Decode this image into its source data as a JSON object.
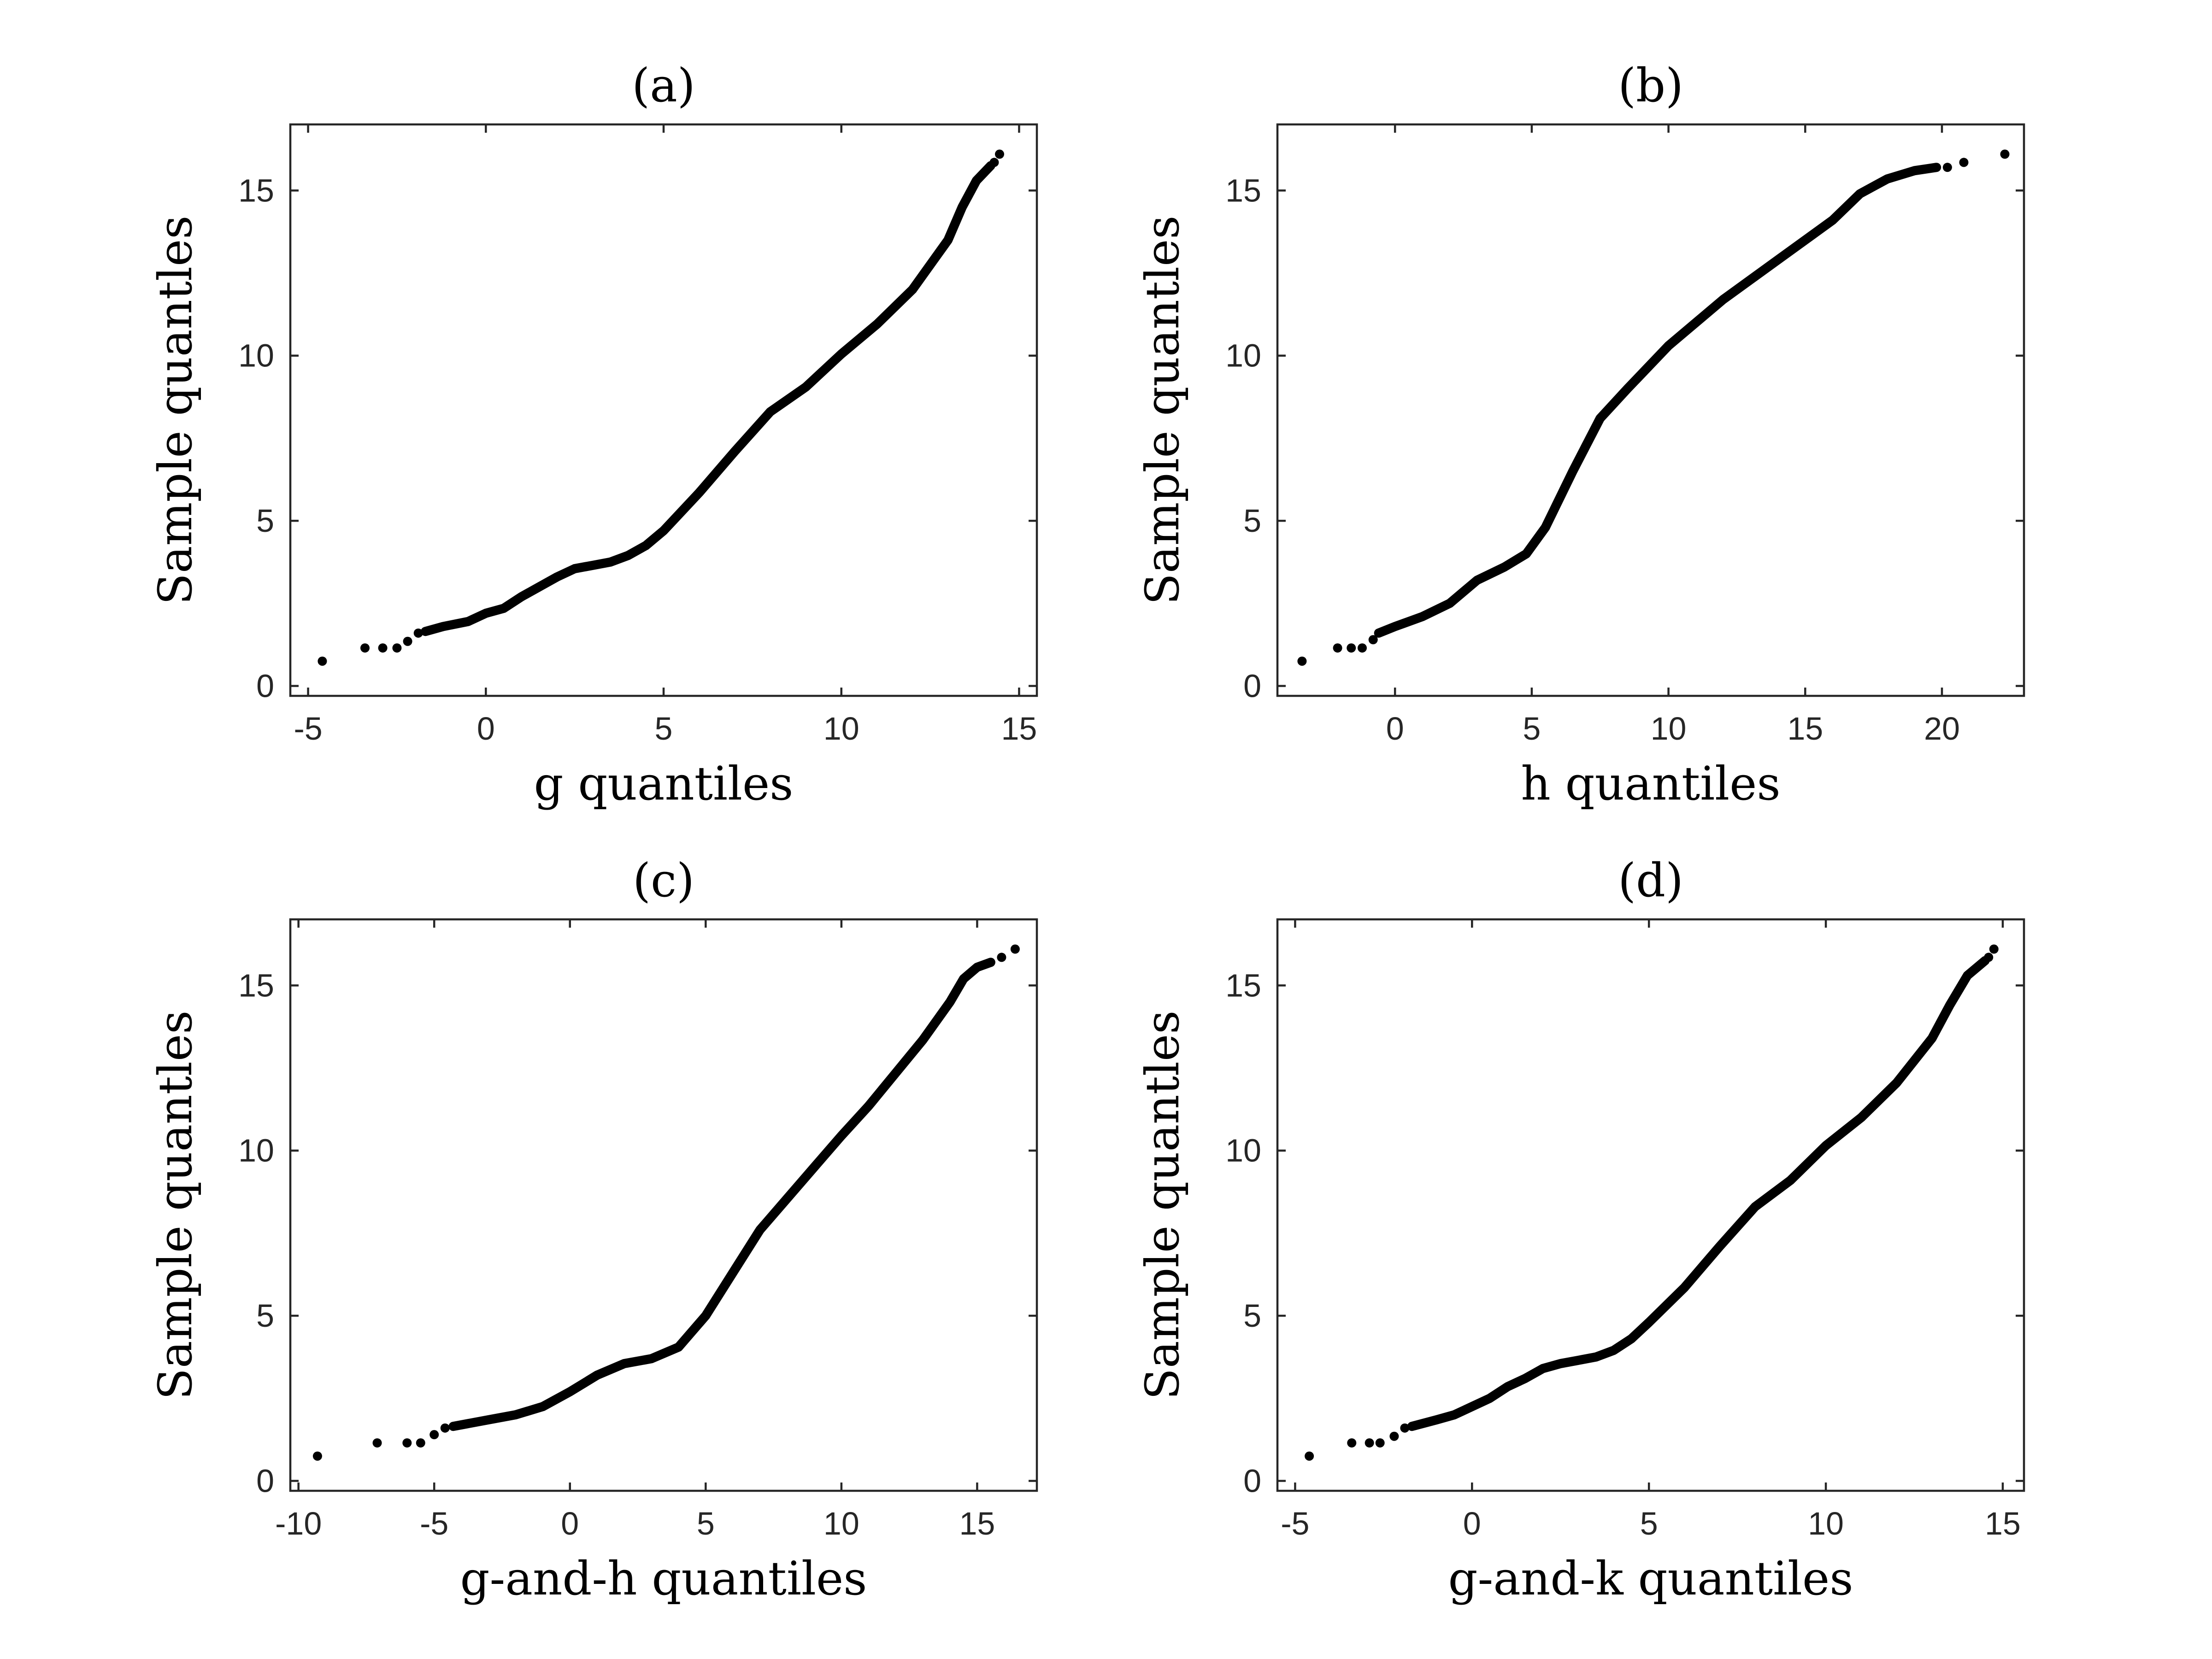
{
  "chart_data": [
    {
      "type": "scatter",
      "title": "(a)",
      "xlabel": "g quantiles",
      "ylabel": "Sample quantles",
      "xlim": [
        -5.5,
        15.5
      ],
      "ylim": [
        -0.3,
        17
      ],
      "xticks": [
        -5,
        0,
        5,
        10,
        15
      ],
      "yticks": [
        0,
        5,
        10,
        15
      ],
      "points": [
        [
          -4.6,
          0.75
        ],
        [
          -3.4,
          1.15
        ],
        [
          -2.9,
          1.15
        ],
        [
          -2.5,
          1.15
        ],
        [
          -2.2,
          1.35
        ],
        [
          -1.9,
          1.6
        ]
      ],
      "curve": [
        [
          -1.7,
          1.65
        ],
        [
          -1.2,
          1.8
        ],
        [
          -0.5,
          1.95
        ],
        [
          0,
          2.2
        ],
        [
          0.5,
          2.35
        ],
        [
          1,
          2.7
        ],
        [
          1.5,
          3.0
        ],
        [
          2,
          3.3
        ],
        [
          2.5,
          3.55
        ],
        [
          3,
          3.65
        ],
        [
          3.5,
          3.75
        ],
        [
          4,
          3.95
        ],
        [
          4.5,
          4.25
        ],
        [
          5,
          4.7
        ],
        [
          6,
          5.85
        ],
        [
          7,
          7.1
        ],
        [
          8,
          8.3
        ],
        [
          9,
          9.05
        ],
        [
          10,
          10.05
        ],
        [
          11,
          10.95
        ],
        [
          12,
          12.0
        ],
        [
          13,
          13.5
        ],
        [
          13.4,
          14.5
        ],
        [
          13.8,
          15.3
        ],
        [
          14.2,
          15.75
        ]
      ],
      "tail_points": [
        [
          14.3,
          15.85
        ],
        [
          14.45,
          16.1
        ]
      ]
    },
    {
      "type": "scatter",
      "title": "(b)",
      "xlabel": "h quantiles",
      "ylabel": "Sample quantles",
      "xlim": [
        -4.3,
        23
      ],
      "ylim": [
        -0.3,
        17
      ],
      "xticks": [
        0,
        5,
        10,
        15,
        20
      ],
      "yticks": [
        0,
        5,
        10,
        15
      ],
      "points": [
        [
          -3.4,
          0.75
        ],
        [
          -2.1,
          1.15
        ],
        [
          -1.6,
          1.15
        ],
        [
          -1.2,
          1.15
        ],
        [
          -0.8,
          1.4
        ]
      ],
      "curve": [
        [
          -0.6,
          1.6
        ],
        [
          0,
          1.8
        ],
        [
          1,
          2.1
        ],
        [
          2,
          2.5
        ],
        [
          3,
          3.2
        ],
        [
          4,
          3.6
        ],
        [
          4.8,
          4.0
        ],
        [
          5.5,
          4.8
        ],
        [
          6.5,
          6.5
        ],
        [
          7.5,
          8.1
        ],
        [
          8.5,
          9.0
        ],
        [
          10,
          10.3
        ],
        [
          12,
          11.7
        ],
        [
          14,
          12.9
        ],
        [
          16,
          14.1
        ],
        [
          17,
          14.9
        ],
        [
          18,
          15.35
        ],
        [
          19,
          15.6
        ],
        [
          19.8,
          15.7
        ]
      ],
      "tail_points": [
        [
          20.2,
          15.7
        ],
        [
          20.8,
          15.85
        ],
        [
          22.3,
          16.1
        ]
      ]
    },
    {
      "type": "scatter",
      "title": "(c)",
      "xlabel": "g-and-h quantiles",
      "ylabel": "Sample quantles",
      "xlim": [
        -10.3,
        17.2
      ],
      "ylim": [
        -0.3,
        17
      ],
      "xticks": [
        -10,
        -5,
        0,
        5,
        10,
        15
      ],
      "yticks": [
        0,
        5,
        10,
        15
      ],
      "points": [
        [
          -9.3,
          0.75
        ],
        [
          -7.1,
          1.15
        ],
        [
          -6.0,
          1.15
        ],
        [
          -5.5,
          1.15
        ],
        [
          -5.0,
          1.4
        ],
        [
          -4.6,
          1.6
        ]
      ],
      "curve": [
        [
          -4.3,
          1.65
        ],
        [
          -3,
          1.85
        ],
        [
          -2,
          2.0
        ],
        [
          -1,
          2.25
        ],
        [
          0,
          2.7
        ],
        [
          1,
          3.2
        ],
        [
          2,
          3.55
        ],
        [
          3,
          3.7
        ],
        [
          4,
          4.05
        ],
        [
          5,
          5.0
        ],
        [
          6,
          6.3
        ],
        [
          7,
          7.6
        ],
        [
          8,
          8.55
        ],
        [
          9,
          9.5
        ],
        [
          10,
          10.45
        ],
        [
          11,
          11.35
        ],
        [
          12,
          12.35
        ],
        [
          13,
          13.35
        ],
        [
          14,
          14.5
        ],
        [
          14.5,
          15.2
        ],
        [
          15,
          15.55
        ],
        [
          15.5,
          15.7
        ]
      ],
      "tail_points": [
        [
          15.9,
          15.85
        ],
        [
          16.4,
          16.1
        ]
      ]
    },
    {
      "type": "scatter",
      "title": "(d)",
      "xlabel": "g-and-k quantiles",
      "ylabel": "Sample quantles",
      "xlim": [
        -5.5,
        15.6
      ],
      "ylim": [
        -0.3,
        17
      ],
      "xticks": [
        -5,
        0,
        5,
        10,
        15
      ],
      "yticks": [
        0,
        5,
        10,
        15
      ],
      "points": [
        [
          -4.6,
          0.75
        ],
        [
          -3.4,
          1.15
        ],
        [
          -2.9,
          1.15
        ],
        [
          -2.6,
          1.15
        ],
        [
          -2.2,
          1.35
        ],
        [
          -1.9,
          1.6
        ]
      ],
      "curve": [
        [
          -1.7,
          1.65
        ],
        [
          -1,
          1.85
        ],
        [
          -0.5,
          2.0
        ],
        [
          0,
          2.25
        ],
        [
          0.5,
          2.5
        ],
        [
          1,
          2.85
        ],
        [
          1.5,
          3.1
        ],
        [
          2,
          3.4
        ],
        [
          2.5,
          3.55
        ],
        [
          3,
          3.65
        ],
        [
          3.5,
          3.75
        ],
        [
          4,
          3.95
        ],
        [
          4.5,
          4.3
        ],
        [
          5,
          4.8
        ],
        [
          6,
          5.85
        ],
        [
          7,
          7.1
        ],
        [
          8,
          8.3
        ],
        [
          9,
          9.1
        ],
        [
          10,
          10.15
        ],
        [
          11,
          11.0
        ],
        [
          12,
          12.05
        ],
        [
          13,
          13.4
        ],
        [
          13.5,
          14.4
        ],
        [
          14,
          15.3
        ],
        [
          14.5,
          15.75
        ]
      ],
      "tail_points": [
        [
          14.6,
          15.85
        ],
        [
          14.75,
          16.1
        ]
      ]
    }
  ]
}
